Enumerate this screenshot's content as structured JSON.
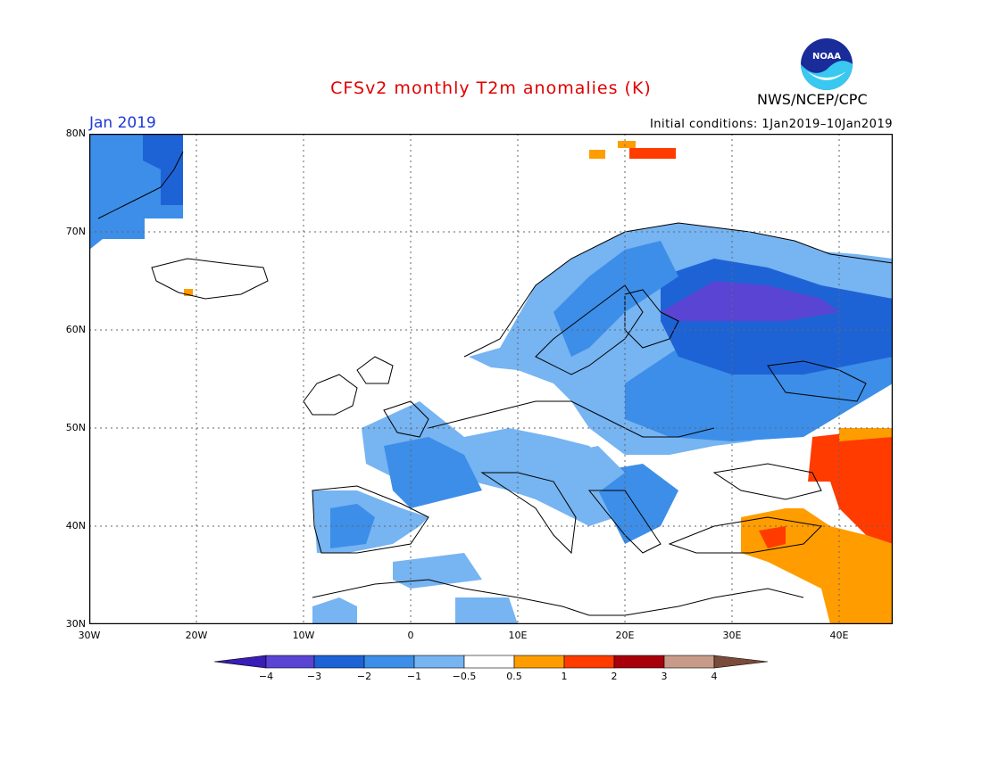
{
  "header": {
    "title": "CFSv2 monthly T2m anomalies (K)",
    "month": "Jan 2019",
    "initial_conditions": "Initial conditions: 1Jan2019–10Jan2019",
    "agency": "NWS/NCEP/CPC",
    "logo_text": "NOAA"
  },
  "axes": {
    "lat_labels": [
      "80N",
      "70N",
      "60N",
      "50N",
      "40N",
      "30N"
    ],
    "lon_labels": [
      "30W",
      "20W",
      "10W",
      "0",
      "10E",
      "20E",
      "30E",
      "40E"
    ],
    "lon_range": [
      -30,
      45
    ],
    "lat_range": [
      30,
      80
    ]
  },
  "colorbar": {
    "labels": [
      "−4",
      "−3",
      "−2",
      "−1",
      "−0.5",
      "0.5",
      "1",
      "2",
      "3",
      "4"
    ],
    "colors": [
      "#3a1cb6",
      "#5a44d4",
      "#1e63d6",
      "#3c8ee8",
      "#76b4f2",
      "#ffffff",
      "#ff9d00",
      "#ff3b00",
      "#a8000a",
      "#c89a8a",
      "#7a4a3a"
    ]
  }
}
